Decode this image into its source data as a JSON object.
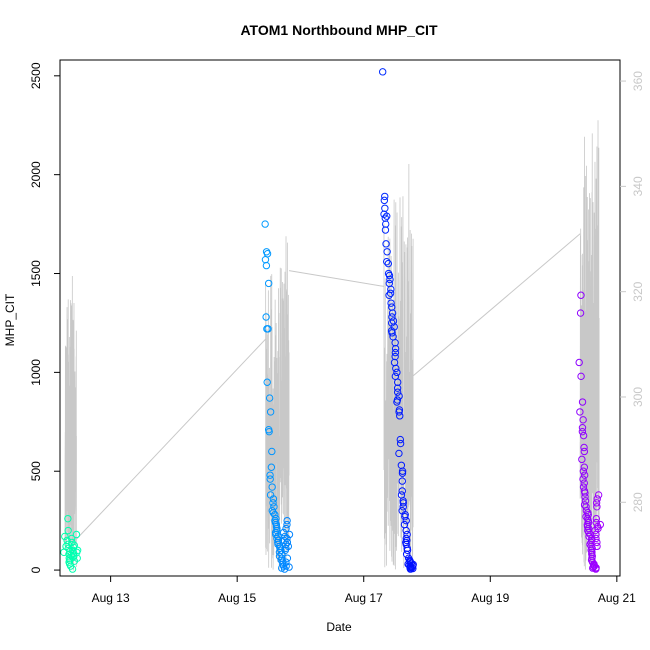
{
  "chart_data": {
    "type": "scatter",
    "title": "ATOM1 Northbound MHP_CIT",
    "xlabel": "Date",
    "ylabel": "MHP_CIT",
    "x_unit": "day of August",
    "x_ticks": [
      {
        "value": 13,
        "label": "Aug 13"
      },
      {
        "value": 15,
        "label": "Aug 15"
      },
      {
        "value": 17,
        "label": "Aug 17"
      },
      {
        "value": 19,
        "label": "Aug 19"
      },
      {
        "value": 21,
        "label": "Aug 21"
      }
    ],
    "y_ticks": [
      0,
      500,
      1000,
      1500,
      2000,
      2500
    ],
    "y2_ticks": [
      280,
      300,
      320,
      340,
      360
    ],
    "xlim": [
      12.2,
      21.05
    ],
    "ylim": [
      -30,
      2580
    ],
    "y2lim": [
      266,
      364
    ],
    "grid": false,
    "legend": "none",
    "colors": {
      "overlay_line": "#c8c8c8",
      "start_point": "#00ffa8",
      "end_point": "#a000ff",
      "axis": "#000000",
      "right_axis": "#c8c8c8"
    },
    "clusters": [
      {
        "x_start": 12.28,
        "x_end": 12.46,
        "y": [
          90,
          120,
          150,
          170,
          260,
          200,
          80,
          60,
          40,
          110,
          130,
          95,
          75,
          50,
          30,
          20,
          5,
          140,
          160,
          100,
          85,
          65,
          45,
          70,
          115,
          125,
          90,
          60,
          180,
          100
        ]
      },
      {
        "x_start": 15.45,
        "x_end": 15.82,
        "y": [
          1750,
          1610,
          1600,
          1570,
          1540,
          1450,
          1280,
          1220,
          1220,
          950,
          870,
          800,
          710,
          700,
          600,
          520,
          480,
          460,
          420,
          380,
          360,
          340,
          320,
          300,
          290,
          280,
          260,
          250,
          240,
          230,
          220,
          210,
          200,
          190,
          180,
          170,
          160,
          150,
          140,
          130,
          120,
          110,
          100,
          90,
          80,
          70,
          60,
          50,
          40,
          30,
          20,
          10,
          5,
          190,
          170,
          150,
          130,
          110,
          210,
          230,
          250,
          100,
          60,
          40,
          20,
          15,
          180,
          160,
          140,
          120
        ]
      },
      {
        "x_start": 17.32,
        "x_end": 17.78,
        "y": [
          2520,
          1890,
          1870,
          1830,
          1800,
          1790,
          1780,
          1750,
          1720,
          1650,
          1610,
          1560,
          1550,
          1500,
          1490,
          1470,
          1450,
          1420,
          1400,
          1390,
          1350,
          1330,
          1300,
          1280,
          1260,
          1250,
          1230,
          1210,
          1200,
          1180,
          1150,
          1120,
          1100,
          1080,
          1050,
          1020,
          1000,
          980,
          950,
          920,
          900,
          880,
          860,
          850,
          810,
          800,
          780,
          660,
          640,
          590,
          530,
          500,
          490,
          450,
          400,
          380,
          350,
          340,
          320,
          300,
          280,
          270,
          250,
          230,
          200,
          180,
          160,
          150,
          140,
          130,
          110,
          100,
          80,
          60,
          50,
          40,
          30,
          25,
          20,
          15,
          10,
          5,
          45,
          35,
          12,
          8,
          22,
          28
        ]
      },
      {
        "x_start": 20.42,
        "x_end": 20.72,
        "y": [
          1390,
          1300,
          1050,
          980,
          850,
          800,
          760,
          720,
          700,
          680,
          620,
          600,
          560,
          520,
          500,
          480,
          460,
          440,
          420,
          400,
          390,
          370,
          350,
          330,
          320,
          300,
          290,
          280,
          270,
          260,
          250,
          240,
          230,
          220,
          210,
          200,
          190,
          180,
          170,
          160,
          150,
          140,
          130,
          120,
          110,
          100,
          90,
          80,
          70,
          60,
          50,
          40,
          30,
          20,
          10,
          5,
          15,
          25,
          8,
          12,
          260,
          240,
          220,
          200,
          180,
          160,
          140,
          120,
          320,
          340,
          360,
          380,
          230,
          210
        ]
      }
    ],
    "overlay_line": {
      "axis": "right",
      "y2_start": 267,
      "y2_end": 362,
      "bridges": [
        {
          "from_x": 12.46,
          "from_y2": 273,
          "to_x": 15.45,
          "to_y2": 311
        },
        {
          "from_x": 15.82,
          "from_y2": 324,
          "to_x": 17.32,
          "to_y2": 321
        },
        {
          "from_x": 17.78,
          "from_y2": 304,
          "to_x": 20.42,
          "to_y2": 331
        }
      ]
    }
  }
}
